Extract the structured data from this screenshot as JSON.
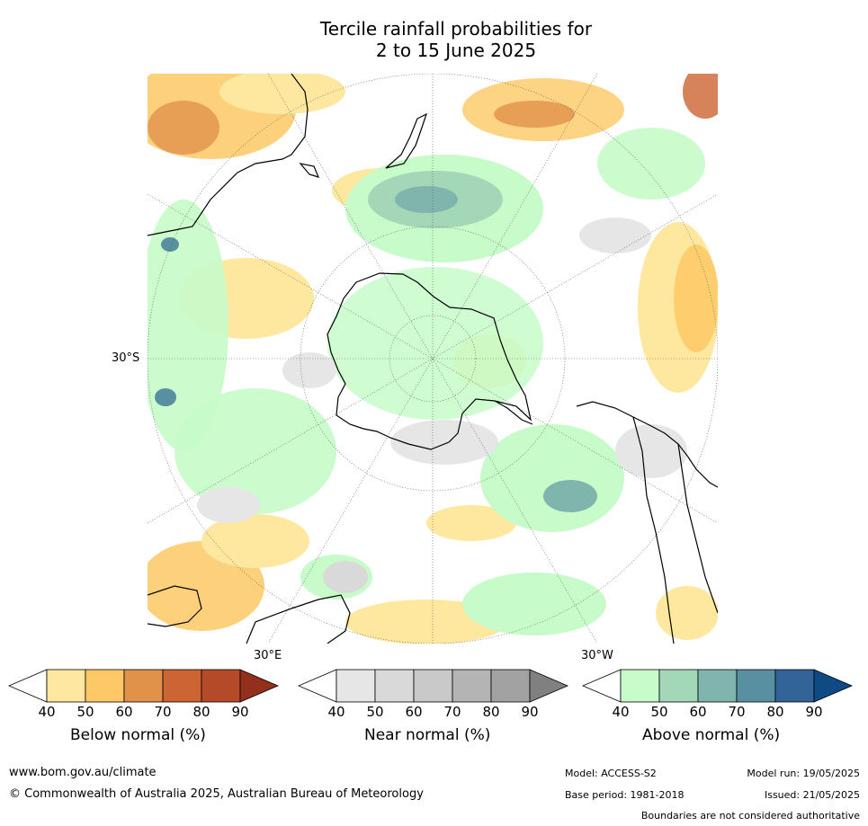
{
  "title": {
    "line1": "Tercile rainfall probabilities for",
    "line2": "2 to 15 June 2025"
  },
  "map": {
    "labels": {
      "lat_30s": "30°S",
      "lon_30e": "30°E",
      "lon_30w": "30°W"
    }
  },
  "colorbars": [
    {
      "title": "Below normal (%)",
      "ticks": [
        "40",
        "50",
        "60",
        "70",
        "80",
        "90"
      ],
      "colors": [
        "#ffffff",
        "#fee8a0",
        "#fdc865",
        "#e0924a",
        "#cc6433",
        "#b44a28",
        "#93301c"
      ]
    },
    {
      "title": "Near normal (%)",
      "ticks": [
        "40",
        "50",
        "60",
        "70",
        "80",
        "90"
      ],
      "colors": [
        "#ffffff",
        "#e6e6e6",
        "#d9d9d9",
        "#c9c9c9",
        "#b4b4b4",
        "#a2a2a2",
        "#808080"
      ]
    },
    {
      "title": "Above normal (%)",
      "ticks": [
        "40",
        "50",
        "60",
        "70",
        "80",
        "90"
      ],
      "colors": [
        "#ffffff",
        "#c7fbc9",
        "#a3d7b8",
        "#7fb5ad",
        "#5990a1",
        "#32649a",
        "#0f4a85"
      ]
    }
  ],
  "footer": {
    "website": "www.bom.gov.au/climate",
    "copyright": "© Commonwealth of Australia 2025, Australian Bureau of Meteorology",
    "model": "Model: ACCESS-S2",
    "base_period": "Base period: 1981-2018",
    "model_run": "Model run: 19/05/2025",
    "issued": "Issued: 21/05/2025",
    "disclaimer": "Boundaries are not considered authoritative"
  }
}
